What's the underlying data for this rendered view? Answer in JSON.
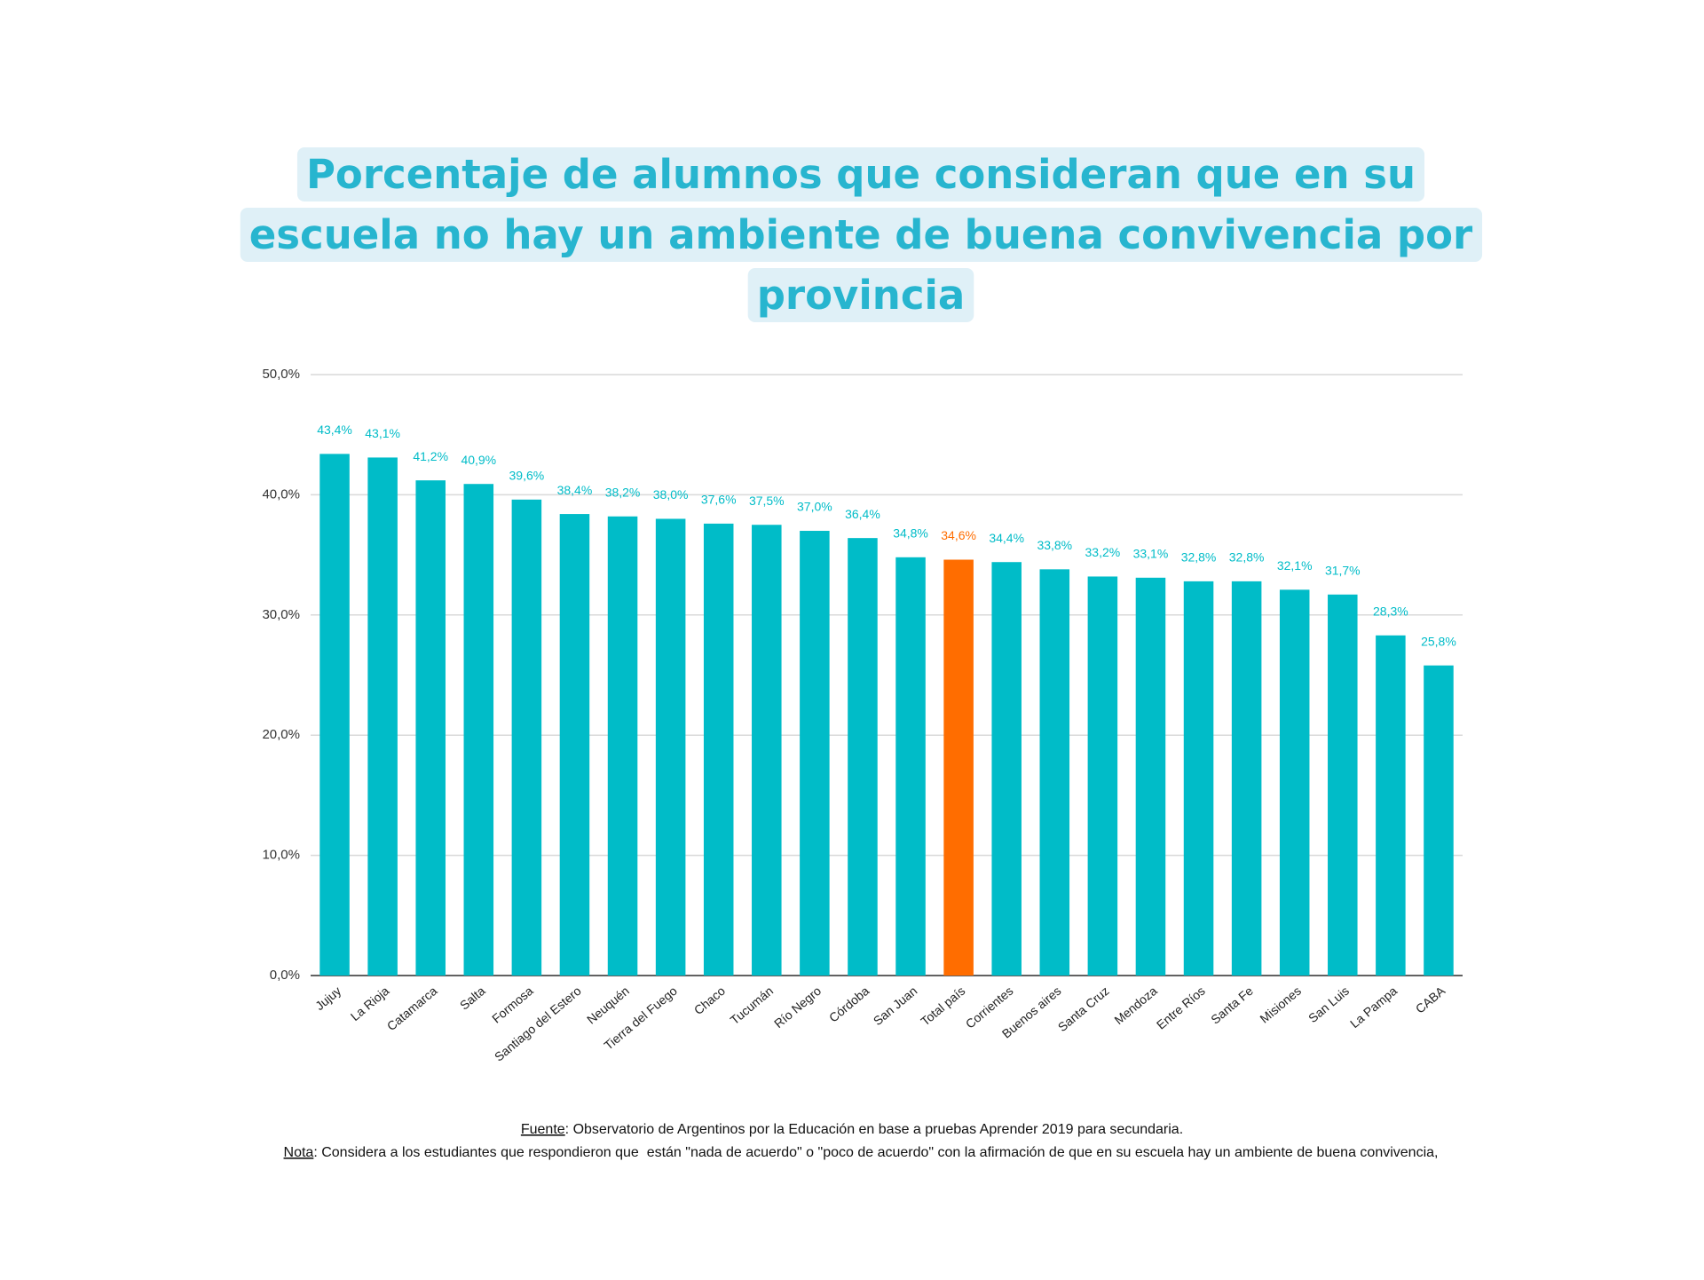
{
  "chart_data": {
    "type": "bar",
    "title_lines": [
      "Porcentaje de alumnos que consideran que en su",
      "escuela no hay un ambiente de buena convivencia por",
      "provincia"
    ],
    "categories": [
      "Jujuy",
      "La Rioja",
      "Catamarca",
      "Salta",
      "Formosa",
      "Santiago del Estero",
      "Neuquén",
      "Tierra del Fuego",
      "Chaco",
      "Tucumán",
      "Río Negro",
      "Córdoba",
      "San Juan",
      "Total país",
      "Corrientes",
      "Buenos aires",
      "Santa Cruz",
      "Mendoza",
      "Entre Ríos",
      "Santa Fe",
      "Misiones",
      "San Luis",
      "La Pampa",
      "CABA"
    ],
    "values": [
      43.4,
      43.1,
      41.2,
      40.9,
      39.6,
      38.4,
      38.2,
      38.0,
      37.6,
      37.5,
      37.0,
      36.4,
      34.8,
      34.6,
      34.4,
      33.8,
      33.2,
      33.1,
      32.8,
      32.8,
      32.1,
      31.7,
      28.3,
      25.8
    ],
    "value_labels": [
      "43,4%",
      "43,1%",
      "41,2%",
      "40,9%",
      "39,6%",
      "38,4%",
      "38,2%",
      "38,0%",
      "37,6%",
      "37,5%",
      "37,0%",
      "36,4%",
      "34,8%",
      "34,6%",
      "34,4%",
      "33,8%",
      "33,2%",
      "33,1%",
      "32,8%",
      "32,8%",
      "32,1%",
      "31,7%",
      "28,3%",
      "25,8%"
    ],
    "colors": [
      "#00bcc8",
      "#00bcc8",
      "#00bcc8",
      "#00bcc8",
      "#00bcc8",
      "#00bcc8",
      "#00bcc8",
      "#00bcc8",
      "#00bcc8",
      "#00bcc8",
      "#00bcc8",
      "#00bcc8",
      "#00bcc8",
      "#ff6d00",
      "#00bcc8",
      "#00bcc8",
      "#00bcc8",
      "#00bcc8",
      "#00bcc8",
      "#00bcc8",
      "#00bcc8",
      "#00bcc8",
      "#00bcc8",
      "#00bcc8"
    ],
    "ylim": [
      0,
      50
    ],
    "yticks": [
      {
        "value": 0,
        "label": "0,0%"
      },
      {
        "value": 10,
        "label": "10,0%"
      },
      {
        "value": 20,
        "label": "20,0%"
      },
      {
        "value": 30,
        "label": "30,0%"
      },
      {
        "value": 40,
        "label": "40,0%"
      },
      {
        "value": 50,
        "label": "50,0%"
      }
    ],
    "grid": true,
    "source_label": "Fuente",
    "source_text": ": Observatorio de Argentinos por la Educación en base a pruebas Aprender 2019 para secundaria.",
    "note_label": "Nota",
    "note_text": ": Considera a los estudiantes que respondieron que  están \"nada de acuerdo\" o \"poco de acuerdo\" con la afirmación de que en su escuela hay un ambiente de buena convivencia,"
  }
}
